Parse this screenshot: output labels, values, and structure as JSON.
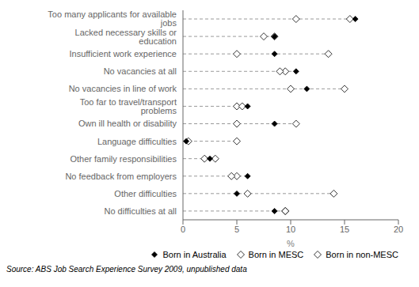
{
  "chart_data": {
    "type": "dot",
    "orientation": "horizontal",
    "categories": [
      "Too many applicants for available jobs",
      "Lacked necessary skills or education",
      "Insufficient work experience",
      "No vacancies at all",
      "No vacancies in line of work",
      "Too far to travel/transport problems",
      "Own ill health or disability",
      "Language difficulties",
      "Other family responsibilities",
      "No feedback from employers",
      "Other difficulties",
      "No difficulties at all"
    ],
    "series": [
      {
        "name": "Born in Australia",
        "color": "#000000",
        "marker": "diamond",
        "values": [
          16.0,
          8.5,
          8.5,
          10.5,
          11.5,
          6.0,
          8.5,
          0.3,
          2.5,
          6.0,
          5.0,
          8.5
        ]
      },
      {
        "name": "Born in MESC",
        "color": "#ffffff",
        "marker": "diamond",
        "values": [
          10.5,
          7.5,
          5.0,
          9.0,
          10.0,
          5.5,
          5.0,
          5.0,
          3.0,
          4.5,
          6.0,
          9.5
        ]
      },
      {
        "name": "Born in non-MESC",
        "color": "#ffffff",
        "marker": "diamond",
        "values": [
          15.5,
          8.5,
          13.5,
          9.5,
          15.0,
          5.0,
          10.5,
          0.5,
          2.0,
          5.0,
          14.0,
          9.5
        ]
      }
    ],
    "lines": {
      "values": [
        16.0,
        8.5,
        13.5,
        10.5,
        15.0,
        6.0,
        10.5,
        5.0,
        3.0,
        6.0,
        14.0,
        9.5
      ],
      "color": "#999999",
      "line_style": "dashed"
    },
    "xlim": [
      0,
      20
    ],
    "xticks": [
      0,
      5,
      10,
      15,
      20
    ],
    "xlabel": "%",
    "annotations": [
      "Source: ABS Job Search Experience Survey 2009, unpublished data"
    ],
    "legend": "lower right",
    "grid": false
  }
}
